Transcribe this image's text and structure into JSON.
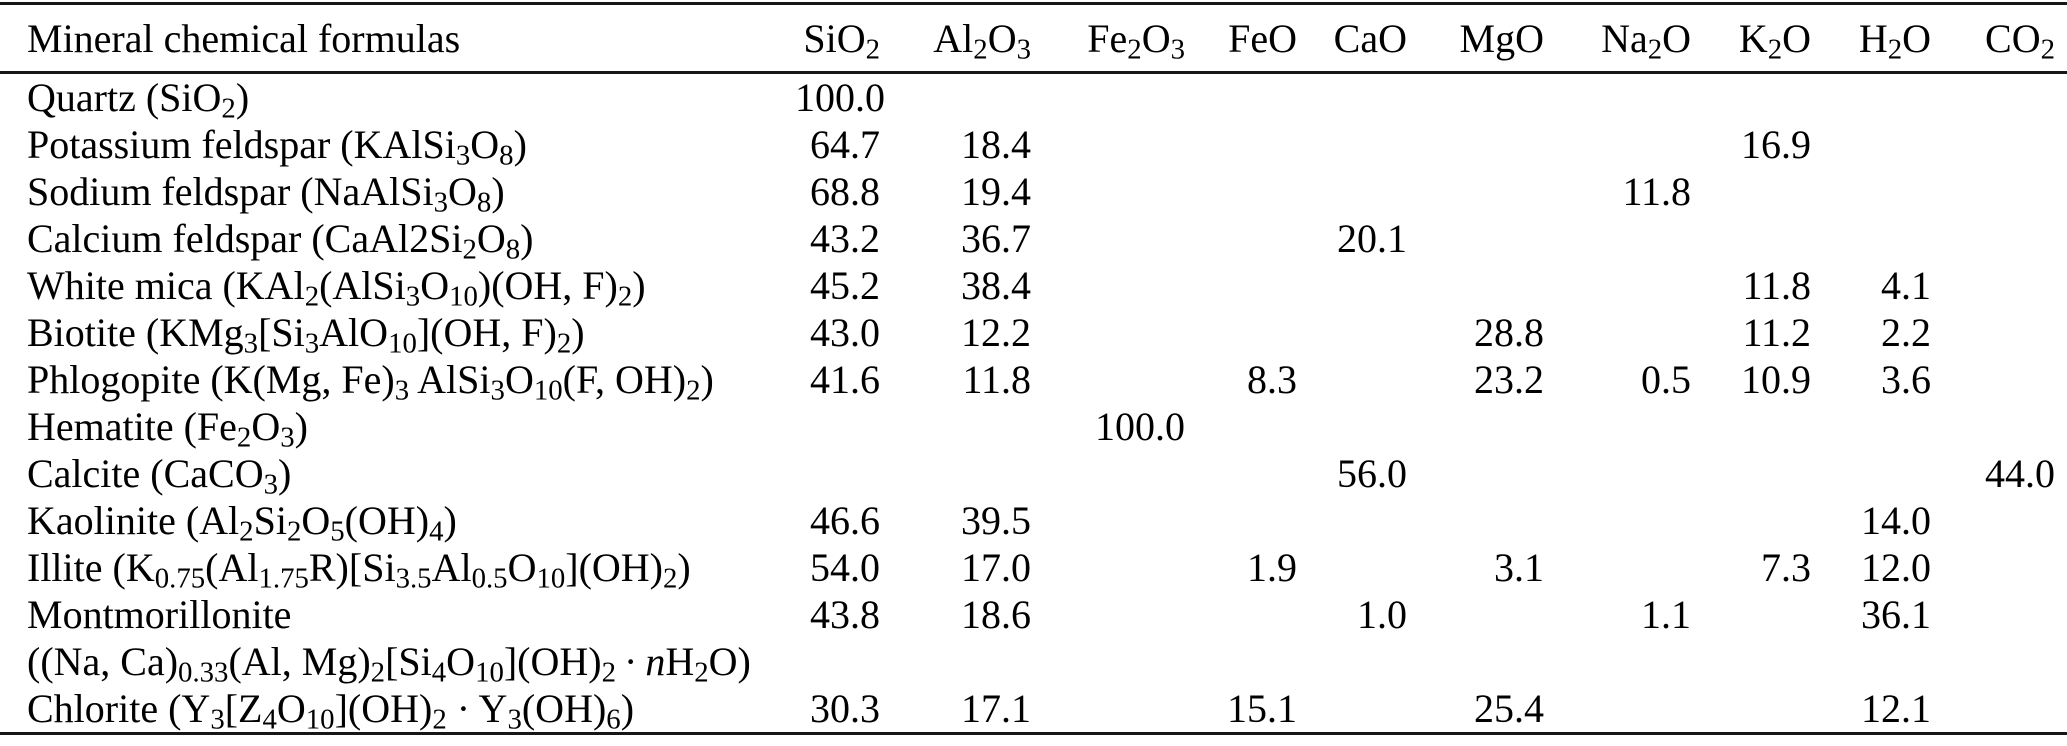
{
  "colors": {
    "text": "#000000",
    "rule": "#161616",
    "background": "#ffffff"
  },
  "table": {
    "header": {
      "mineral_col": "Mineral chemical formulas",
      "oxides": [
        [
          [
            "t",
            "SiO"
          ],
          [
            "s",
            "2"
          ]
        ],
        [
          [
            "t",
            "Al"
          ],
          [
            "s",
            "2"
          ],
          [
            "t",
            "O"
          ],
          [
            "s",
            "3"
          ]
        ],
        [
          [
            "t",
            "Fe"
          ],
          [
            "s",
            "2"
          ],
          [
            "t",
            "O"
          ],
          [
            "s",
            "3"
          ]
        ],
        [
          [
            "t",
            "FeO"
          ]
        ],
        [
          [
            "t",
            "CaO"
          ]
        ],
        [
          [
            "t",
            "MgO"
          ]
        ],
        [
          [
            "t",
            "Na"
          ],
          [
            "s",
            "2"
          ],
          [
            "t",
            "O"
          ]
        ],
        [
          [
            "t",
            "K"
          ],
          [
            "s",
            "2"
          ],
          [
            "t",
            "O"
          ]
        ],
        [
          [
            "t",
            "H"
          ],
          [
            "s",
            "2"
          ],
          [
            "t",
            "O"
          ]
        ],
        [
          [
            "t",
            "CO"
          ],
          [
            "s",
            "2"
          ]
        ]
      ]
    },
    "rows": [
      {
        "mineral": [
          [
            "t",
            "Quartz (SiO"
          ],
          [
            "s",
            "2"
          ],
          [
            "t",
            ")"
          ]
        ],
        "values": [
          "100.0",
          "",
          "",
          "",
          "",
          "",
          "",
          "",
          "",
          ""
        ]
      },
      {
        "mineral": [
          [
            "t",
            "Potassium feldspar (KAlSi"
          ],
          [
            "s",
            "3"
          ],
          [
            "t",
            "O"
          ],
          [
            "s",
            "8"
          ],
          [
            "t",
            ")"
          ]
        ],
        "values": [
          "64.7",
          "18.4",
          "",
          "",
          "",
          "",
          "",
          "16.9",
          "",
          ""
        ]
      },
      {
        "mineral": [
          [
            "t",
            "Sodium feldspar (NaAlSi"
          ],
          [
            "s",
            "3"
          ],
          [
            "t",
            "O"
          ],
          [
            "s",
            "8"
          ],
          [
            "t",
            ")"
          ]
        ],
        "values": [
          "68.8",
          "19.4",
          "",
          "",
          "",
          "",
          "11.8",
          "",
          "",
          ""
        ]
      },
      {
        "mineral": [
          [
            "t",
            "Calcium feldspar (CaAl2Si"
          ],
          [
            "s",
            "2"
          ],
          [
            "t",
            "O"
          ],
          [
            "s",
            "8"
          ],
          [
            "t",
            ")"
          ]
        ],
        "values": [
          "43.2",
          "36.7",
          "",
          "",
          "20.1",
          "",
          "",
          "",
          "",
          ""
        ]
      },
      {
        "mineral": [
          [
            "t",
            "White mica (KAl"
          ],
          [
            "s",
            "2"
          ],
          [
            "t",
            "(AlSi"
          ],
          [
            "s",
            "3"
          ],
          [
            "t",
            "O"
          ],
          [
            "s",
            "10"
          ],
          [
            "t",
            ")(OH, F)"
          ],
          [
            "s",
            "2"
          ],
          [
            "t",
            ")"
          ]
        ],
        "values": [
          "45.2",
          "38.4",
          "",
          "",
          "",
          "",
          "",
          "11.8",
          "4.1",
          ""
        ]
      },
      {
        "mineral": [
          [
            "t",
            "Biotite (KMg"
          ],
          [
            "s",
            "3"
          ],
          [
            "t",
            "[Si"
          ],
          [
            "s",
            "3"
          ],
          [
            "t",
            "AlO"
          ],
          [
            "s",
            "10"
          ],
          [
            "t",
            "](OH, F)"
          ],
          [
            "s",
            "2"
          ],
          [
            "t",
            ")"
          ]
        ],
        "values": [
          "43.0",
          "12.2",
          "",
          "",
          "",
          "28.8",
          "",
          "11.2",
          "2.2",
          ""
        ]
      },
      {
        "mineral": [
          [
            "t",
            "Phlogopite (K(Mg, Fe)"
          ],
          [
            "s",
            "3"
          ],
          [
            "t",
            " AlSi"
          ],
          [
            "s",
            "3"
          ],
          [
            "t",
            "O"
          ],
          [
            "s",
            "10"
          ],
          [
            "t",
            "(F, OH)"
          ],
          [
            "s",
            "2"
          ],
          [
            "t",
            ")"
          ]
        ],
        "values": [
          "41.6",
          "11.8",
          "",
          "8.3",
          "",
          "23.2",
          "0.5",
          "10.9",
          "3.6",
          ""
        ]
      },
      {
        "mineral": [
          [
            "t",
            "Hematite (Fe"
          ],
          [
            "s",
            "2"
          ],
          [
            "t",
            "O"
          ],
          [
            "s",
            "3"
          ],
          [
            "t",
            ")"
          ]
        ],
        "values": [
          "",
          "",
          "100.0",
          "",
          "",
          "",
          "",
          "",
          "",
          ""
        ]
      },
      {
        "mineral": [
          [
            "t",
            "Calcite (CaCO"
          ],
          [
            "s",
            "3"
          ],
          [
            "t",
            ")"
          ]
        ],
        "values": [
          "",
          "",
          "",
          "",
          "56.0",
          "",
          "",
          "",
          "",
          "44.0"
        ]
      },
      {
        "mineral": [
          [
            "t",
            "Kaolinite (Al"
          ],
          [
            "s",
            "2"
          ],
          [
            "t",
            "Si"
          ],
          [
            "s",
            "2"
          ],
          [
            "t",
            "O"
          ],
          [
            "s",
            "5"
          ],
          [
            "t",
            "(OH)"
          ],
          [
            "s",
            "4"
          ],
          [
            "t",
            ")"
          ]
        ],
        "values": [
          "46.6",
          "39.5",
          "",
          "",
          "",
          "",
          "",
          "",
          "14.0",
          ""
        ]
      },
      {
        "mineral": [
          [
            "t",
            "Illite (K"
          ],
          [
            "s",
            "0.75"
          ],
          [
            "t",
            "(Al"
          ],
          [
            "s",
            "1.75"
          ],
          [
            "t",
            "R)[Si"
          ],
          [
            "s",
            "3.5"
          ],
          [
            "t",
            "Al"
          ],
          [
            "s",
            "0.5"
          ],
          [
            "t",
            "O"
          ],
          [
            "s",
            "10"
          ],
          [
            "t",
            "](OH)"
          ],
          [
            "s",
            "2"
          ],
          [
            "t",
            ")"
          ]
        ],
        "values": [
          "54.0",
          "17.0",
          "",
          "1.9",
          "",
          "3.1",
          "",
          "7.3",
          "12.0",
          ""
        ]
      },
      {
        "mineral": [
          [
            "t",
            "Montmorillonite"
          ]
        ],
        "values": [
          "43.8",
          "18.6",
          "",
          "",
          "1.0",
          "",
          "1.1",
          "",
          "36.1",
          ""
        ]
      },
      {
        "mineral": [
          [
            "t",
            "((Na, Ca)"
          ],
          [
            "s",
            "0.33"
          ],
          [
            "t",
            "(Al, Mg)"
          ],
          [
            "s",
            "2"
          ],
          [
            "t",
            "[Si"
          ],
          [
            "s",
            "4"
          ],
          [
            "t",
            "O"
          ],
          [
            "s",
            "10"
          ],
          [
            "t",
            "](OH)"
          ],
          [
            "s",
            "2"
          ],
          [
            "t",
            " · "
          ],
          [
            "i",
            "n"
          ],
          [
            "t",
            "H"
          ],
          [
            "s",
            "2"
          ],
          [
            "t",
            "O)"
          ]
        ],
        "values": [
          "",
          "",
          "",
          "",
          "",
          "",
          "",
          "",
          "",
          ""
        ]
      },
      {
        "mineral": [
          [
            "t",
            "Chlorite (Y"
          ],
          [
            "s",
            "3"
          ],
          [
            "t",
            "[Z"
          ],
          [
            "s",
            "4"
          ],
          [
            "t",
            "O"
          ],
          [
            "s",
            "10"
          ],
          [
            "t",
            "](OH)"
          ],
          [
            "s",
            "2"
          ],
          [
            "t",
            " · Y"
          ],
          [
            "s",
            "3"
          ],
          [
            "t",
            "(OH)"
          ],
          [
            "s",
            "6"
          ],
          [
            "t",
            ")"
          ]
        ],
        "values": [
          "30.3",
          "17.1",
          "",
          "15.1",
          "",
          "25.4",
          "",
          "",
          "12.1",
          ""
        ]
      }
    ]
  }
}
